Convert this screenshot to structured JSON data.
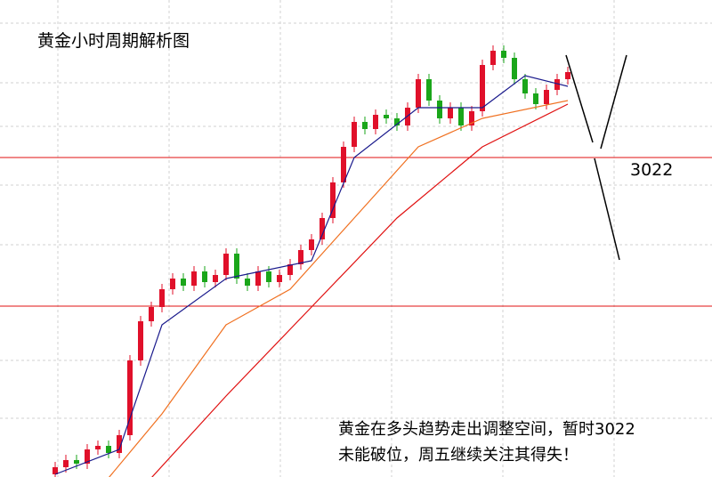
{
  "chart_data": {
    "type": "candlestick",
    "title": "黄金小时周期解析图",
    "ylim": [
      2932.25,
      3066.25
    ],
    "open": [
      2933,
      2935,
      2937,
      2936,
      2940,
      2941,
      2939,
      2944,
      2965,
      2976,
      2980,
      2985,
      2988,
      2986,
      2990,
      2987,
      2989,
      2995,
      2988,
      2986,
      2990,
      2987,
      2989,
      2992,
      2996,
      2999,
      3005,
      3015,
      3025,
      3032,
      3030,
      3034,
      3033,
      3031,
      3036,
      3044,
      3038,
      3033,
      3036,
      3031,
      3035,
      3048,
      3052,
      3050,
      3044,
      3040,
      3037,
      3041,
      3044
    ],
    "close": [
      2935,
      2937,
      2936,
      2940,
      2941,
      2939,
      2944,
      2965,
      2976,
      2980,
      2985,
      2988,
      2986,
      2990,
      2987,
      2989,
      2995,
      2988,
      2986,
      2990,
      2987,
      2989,
      2992,
      2996,
      2999,
      3005,
      3015,
      3025,
      3032,
      3030,
      3034,
      3033,
      3031,
      3036,
      3044,
      3038,
      3033,
      3036,
      3031,
      3035,
      3048,
      3052,
      3050,
      3044,
      3040,
      3037,
      3041,
      3044,
      3046
    ],
    "up_color": "#e0102a",
    "down_color": "#1aa61a",
    "moving_averages": [
      {
        "color": "#1a1a8c",
        "x": [
          0,
          6,
          10,
          16,
          24,
          28,
          34,
          40,
          44,
          48
        ],
        "values": [
          2933,
          2940,
          2975,
          2988,
          2993,
          3022,
          3036,
          3036,
          3045,
          3042
        ]
      },
      {
        "color": "#f07020",
        "x": [
          5,
          10,
          16,
          22,
          28,
          34,
          40,
          48
        ],
        "values": [
          2932,
          2950,
          2975,
          2985,
          3005,
          3025,
          3033,
          3038
        ]
      },
      {
        "color": "#e01010",
        "x": [
          9,
          16,
          24,
          32,
          40,
          48
        ],
        "values": [
          2932,
          2955,
          2980,
          3005,
          3025,
          3037
        ]
      }
    ],
    "levels": [
      {
        "value": 3022,
        "label": "3022"
      },
      {
        "value": 2980.25
      }
    ],
    "level_color": "#e01010",
    "annotation": [
      "黄金在多头趋势走出调整空间，暂时3022",
      "未能破位，周五继续关注其得失！"
    ]
  }
}
